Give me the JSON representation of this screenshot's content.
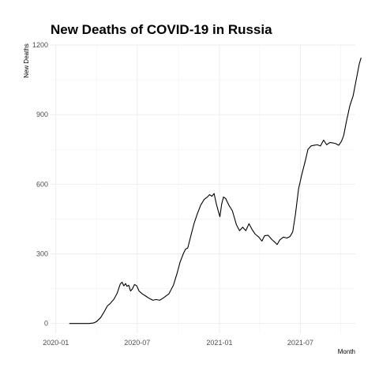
{
  "chart_data": {
    "type": "line",
    "title": "New Deaths of COVID-19 in Russia",
    "xlabel": "Month",
    "ylabel": "New Deaths",
    "x_tick_labels": [
      "2020-01",
      "2020-07",
      "2021-01",
      "2021-07"
    ],
    "x_tick_dates": [
      "2020-01-01",
      "2020-07-01",
      "2021-01-01",
      "2021-07-01"
    ],
    "y_ticks": [
      0,
      300,
      600,
      900,
      1200
    ],
    "xlim": [
      "2019-12-20",
      "2021-11-01"
    ],
    "ylim": [
      -42,
      1200
    ],
    "grid": true,
    "series": [
      {
        "color": "#000000",
        "points": [
          [
            "2020-01-31",
            0
          ],
          [
            "2020-02-15",
            0
          ],
          [
            "2020-03-01",
            0
          ],
          [
            "2020-03-15",
            0
          ],
          [
            "2020-03-25",
            2
          ],
          [
            "2020-04-01",
            8
          ],
          [
            "2020-04-10",
            25
          ],
          [
            "2020-04-18",
            50
          ],
          [
            "2020-04-25",
            75
          ],
          [
            "2020-05-01",
            85
          ],
          [
            "2020-05-10",
            105
          ],
          [
            "2020-05-17",
            130
          ],
          [
            "2020-05-24",
            170
          ],
          [
            "2020-05-28",
            178
          ],
          [
            "2020-06-01",
            162
          ],
          [
            "2020-06-05",
            172
          ],
          [
            "2020-06-08",
            160
          ],
          [
            "2020-06-12",
            165
          ],
          [
            "2020-06-16",
            140
          ],
          [
            "2020-06-20",
            148
          ],
          [
            "2020-06-25",
            168
          ],
          [
            "2020-06-30",
            162
          ],
          [
            "2020-07-05",
            140
          ],
          [
            "2020-07-12",
            128
          ],
          [
            "2020-07-20",
            118
          ],
          [
            "2020-07-28",
            108
          ],
          [
            "2020-08-05",
            100
          ],
          [
            "2020-08-12",
            103
          ],
          [
            "2020-08-20",
            100
          ],
          [
            "2020-08-27",
            108
          ],
          [
            "2020-09-01",
            115
          ],
          [
            "2020-09-10",
            128
          ],
          [
            "2020-09-20",
            165
          ],
          [
            "2020-09-28",
            215
          ],
          [
            "2020-10-05",
            265
          ],
          [
            "2020-10-12",
            300
          ],
          [
            "2020-10-17",
            320
          ],
          [
            "2020-10-22",
            325
          ],
          [
            "2020-10-28",
            370
          ],
          [
            "2020-11-05",
            430
          ],
          [
            "2020-11-12",
            470
          ],
          [
            "2020-11-20",
            510
          ],
          [
            "2020-11-28",
            535
          ],
          [
            "2020-12-05",
            545
          ],
          [
            "2020-12-10",
            555
          ],
          [
            "2020-12-15",
            548
          ],
          [
            "2020-12-20",
            560
          ],
          [
            "2020-12-25",
            515
          ],
          [
            "2020-12-30",
            480
          ],
          [
            "2021-01-02",
            460
          ],
          [
            "2021-01-06",
            515
          ],
          [
            "2021-01-10",
            545
          ],
          [
            "2021-01-15",
            538
          ],
          [
            "2021-01-22",
            510
          ],
          [
            "2021-01-30",
            485
          ],
          [
            "2021-02-08",
            425
          ],
          [
            "2021-02-15",
            400
          ],
          [
            "2021-02-22",
            415
          ],
          [
            "2021-03-01",
            400
          ],
          [
            "2021-03-08",
            430
          ],
          [
            "2021-03-15",
            405
          ],
          [
            "2021-03-22",
            385
          ],
          [
            "2021-03-30",
            372
          ],
          [
            "2021-04-06",
            355
          ],
          [
            "2021-04-12",
            378
          ],
          [
            "2021-04-20",
            380
          ],
          [
            "2021-04-28",
            362
          ],
          [
            "2021-05-05",
            350
          ],
          [
            "2021-05-10",
            340
          ],
          [
            "2021-05-16",
            360
          ],
          [
            "2021-05-24",
            372
          ],
          [
            "2021-06-01",
            368
          ],
          [
            "2021-06-08",
            375
          ],
          [
            "2021-06-14",
            395
          ],
          [
            "2021-06-20",
            470
          ],
          [
            "2021-06-27",
            580
          ],
          [
            "2021-07-04",
            640
          ],
          [
            "2021-07-12",
            700
          ],
          [
            "2021-07-18",
            750
          ],
          [
            "2021-07-25",
            765
          ],
          [
            "2021-08-01",
            768
          ],
          [
            "2021-08-08",
            770
          ],
          [
            "2021-08-15",
            765
          ],
          [
            "2021-08-22",
            790
          ],
          [
            "2021-08-29",
            770
          ],
          [
            "2021-09-05",
            780
          ],
          [
            "2021-09-12",
            778
          ],
          [
            "2021-09-18",
            775
          ],
          [
            "2021-09-25",
            768
          ],
          [
            "2021-10-01",
            785
          ],
          [
            "2021-10-06",
            810
          ],
          [
            "2021-10-12",
            870
          ],
          [
            "2021-10-20",
            940
          ],
          [
            "2021-10-27",
            980
          ],
          [
            "2021-11-03",
            1050
          ],
          [
            "2021-11-10",
            1120
          ],
          [
            "2021-11-14",
            1145
          ]
        ]
      }
    ]
  }
}
